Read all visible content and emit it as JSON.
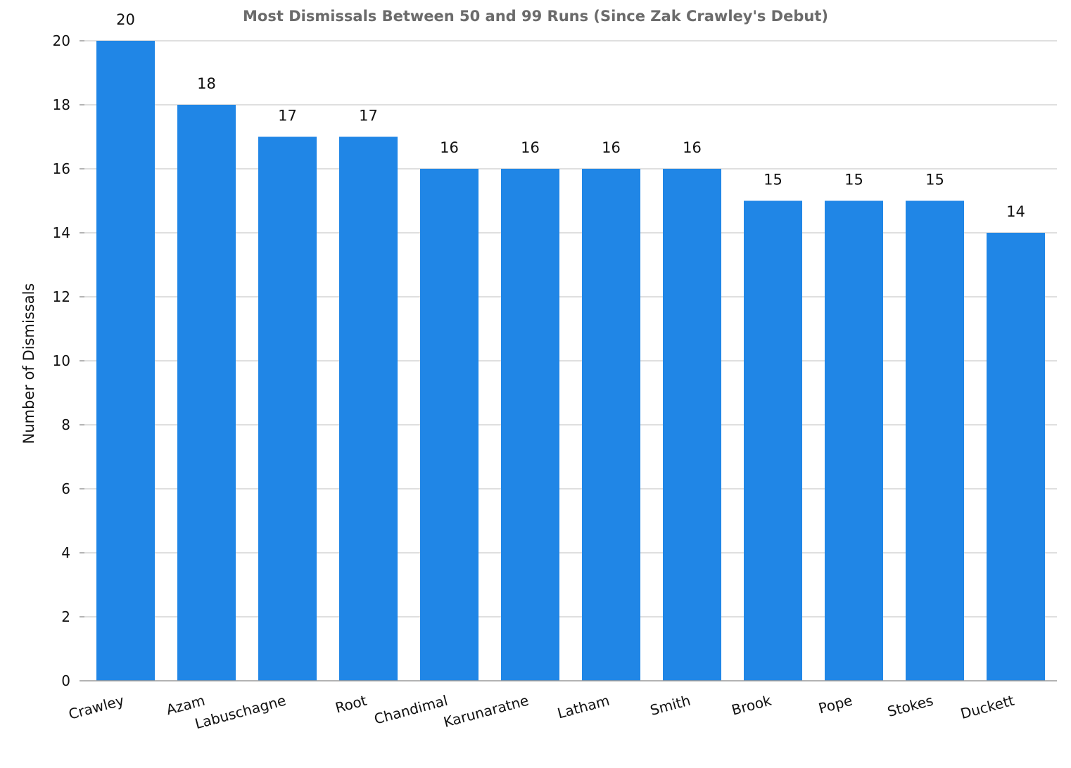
{
  "chart_data": {
    "type": "bar",
    "title": "Most Dismissals Between 50 and 99 Runs (Since Zak Crawley's Debut)",
    "xlabel": "",
    "ylabel": "Number of Dismissals",
    "categories": [
      "Crawley",
      "Azam",
      "Labuschagne",
      "Root",
      "Chandimal",
      "Karunaratne",
      "Latham",
      "Smith",
      "Brook",
      "Pope",
      "Stokes",
      "Duckett"
    ],
    "values": [
      20,
      18,
      17,
      17,
      16,
      16,
      16,
      16,
      15,
      15,
      15,
      14
    ],
    "ylim": [
      0,
      20
    ],
    "yticks": [
      0,
      2,
      4,
      6,
      8,
      10,
      12,
      14,
      16,
      18,
      20
    ],
    "grid": true,
    "legend": "none",
    "bar_color": "#2086e6",
    "data_labels": true
  }
}
